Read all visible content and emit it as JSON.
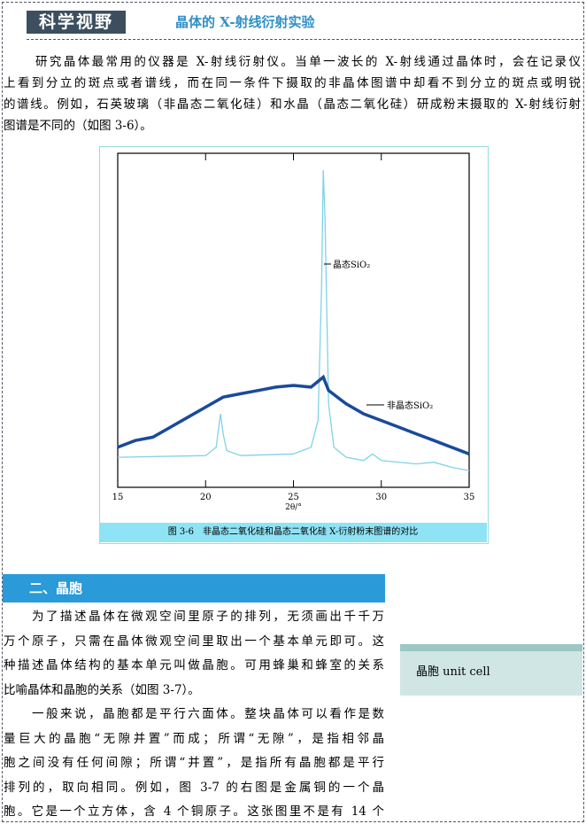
{
  "header": {
    "logo": "科学视野",
    "title": "晶体的 X-射线衍射实验"
  },
  "intro": {
    "lines": [
      "研究晶体最常用的仪器是 X-射线衍射仪。当单一波长的 X-射线通过晶体时，会在记录仪",
      "上看到分立的斑点或者谱线，而在同一条件下摄取的非晶体图谱中却看不到分立的斑点或明锐",
      "的谱线。例如，石英玻璃（非晶态二氧化硅）和水晶（晶态二氧化硅）研成粉末摄取的 X-射线衍射",
      "图谱是不同的（如图 3-6）。"
    ]
  },
  "figure": {
    "caption": "图 3-6　非晶态二氧化硅和晶态二氧化硅 X-衍射粉末图谱的对比",
    "chart": {
      "type": "line",
      "xlabel": "2θ/°",
      "xlim": [
        15,
        35
      ],
      "xticks": [
        15,
        20,
        25,
        30,
        35
      ],
      "ylim": [
        0,
        100
      ],
      "series": [
        {
          "name": "晶态SiO₂",
          "color": "#7fd3e6",
          "x": [
            15,
            20,
            20.6,
            20.85,
            21,
            21.2,
            22,
            25,
            26,
            26.4,
            26.6,
            26.7,
            26.8,
            27,
            27.3,
            28,
            29,
            29.5,
            30,
            32,
            33,
            34,
            35
          ],
          "values": [
            9,
            9.5,
            12,
            22,
            16,
            11,
            9.5,
            10,
            12,
            20,
            60,
            95,
            80,
            25,
            12,
            9,
            8,
            10,
            8,
            7,
            7.5,
            6,
            5
          ]
        },
        {
          "name": "非晶态SiO₂",
          "color": "#1a4a9a",
          "x": [
            15,
            16,
            17,
            18,
            19,
            20,
            21,
            22,
            23,
            24,
            25,
            26,
            26.7,
            27,
            28,
            29,
            30,
            31,
            32,
            33,
            34,
            35
          ],
          "values": [
            12,
            14,
            15,
            18,
            21,
            24,
            27,
            28,
            29,
            30,
            30.5,
            30,
            33,
            29,
            25,
            22,
            20,
            18,
            16,
            14,
            12,
            10
          ]
        }
      ]
    }
  },
  "section": {
    "title": "二、晶胞",
    "paragraphs": [
      [
        "为了描述晶体在微观空间里原子的排列，无须画出千千万",
        "万个原子，只需在晶体微观空间里取出一个基本单元即可。这",
        "种描述晶体结构的基本单元叫做晶胞。可用蜂巢和蜂室的关系",
        "比喻晶体和晶胞的关系（如图 3-7）。"
      ],
      [
        "一般来说，晶胞都是平行六面体。整块晶体可以看作是数",
        "量巨大的晶胞“无隙并置”而成；所谓“无隙”，是指相邻晶",
        "胞之间没有任何间隙；所谓“并置”，是指所有晶胞都是平行",
        "排列的，取向相同。例如，图 3-7 的右图是金属铜的一个晶",
        "胞。它是一个立方体，含 4 个铜原子。这张图里不是有 14 个"
      ]
    ]
  },
  "sidebar": {
    "term": "晶胞 unit cell"
  }
}
